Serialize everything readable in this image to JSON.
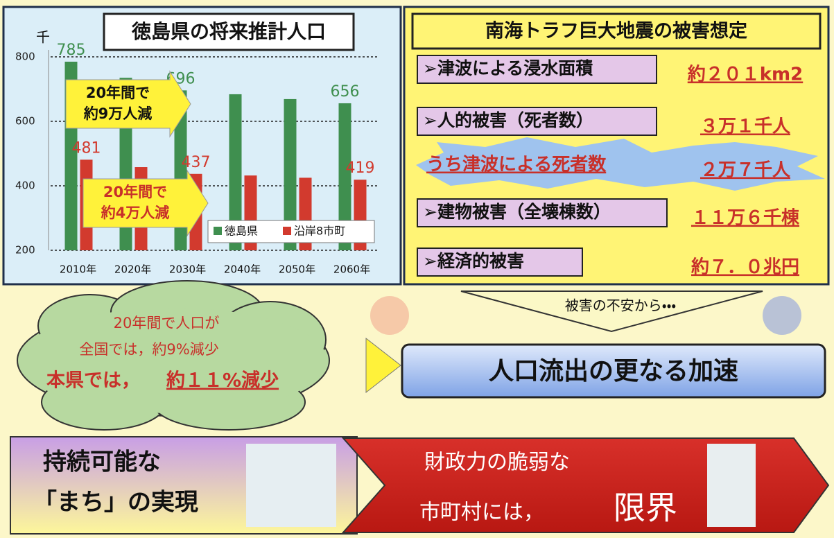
{
  "chart_data": {
    "type": "bar",
    "title": "徳島県の将来推計人口",
    "unit": "千",
    "categories": [
      "2010年",
      "2020年",
      "2030年",
      "2040年",
      "2050年",
      "2060年"
    ],
    "series": [
      {
        "name": "徳島県",
        "color": "#3f8f4f",
        "values": [
          785,
          735,
          696,
          684,
          669,
          656
        ],
        "value_labels": [
          "785",
          null,
          "696",
          null,
          null,
          "656"
        ]
      },
      {
        "name": "沿岸8市町",
        "color": "#d23a2e",
        "values": [
          481,
          458,
          437,
          432,
          425,
          419
        ],
        "value_labels": [
          "481",
          null,
          "437",
          null,
          null,
          "419"
        ]
      }
    ],
    "ylim": [
      200,
      800
    ],
    "yticks": [
      200,
      400,
      600,
      800
    ],
    "grid": true,
    "annotations": [
      [
        "20年間で",
        "約9万人減"
      ],
      [
        "20年間で",
        "約4万人減"
      ]
    ]
  },
  "damage": {
    "title": "南海トラフ巨大地震の被害想定",
    "rows": [
      [
        "➢津波による浸水面積",
        "約２０１km2"
      ],
      [
        "➢人的被害（死者数）",
        "３万１千人"
      ],
      [
        "うち津波による死者数",
        "２万７千人"
      ],
      [
        "➢建物被害（全壊棟数）",
        "１１万６千棟"
      ],
      [
        "➢経済的被害",
        "約７．０兆円"
      ]
    ]
  },
  "cloud": {
    "lines": [
      "20年間で人口が",
      "全国では，約9%減少"
    ],
    "emphasis": "本県では，",
    "emphasis_value": "約１１%減少"
  },
  "flow": {
    "cause": "被害の不安から・・・",
    "result": "人口流出の更なる加速"
  },
  "bottom": {
    "left": [
      "持続可能な",
      "「まち」の実現"
    ],
    "right": [
      "財政力の脆弱な",
      "市町村には，"
    ],
    "right_emphasis": "限界"
  }
}
